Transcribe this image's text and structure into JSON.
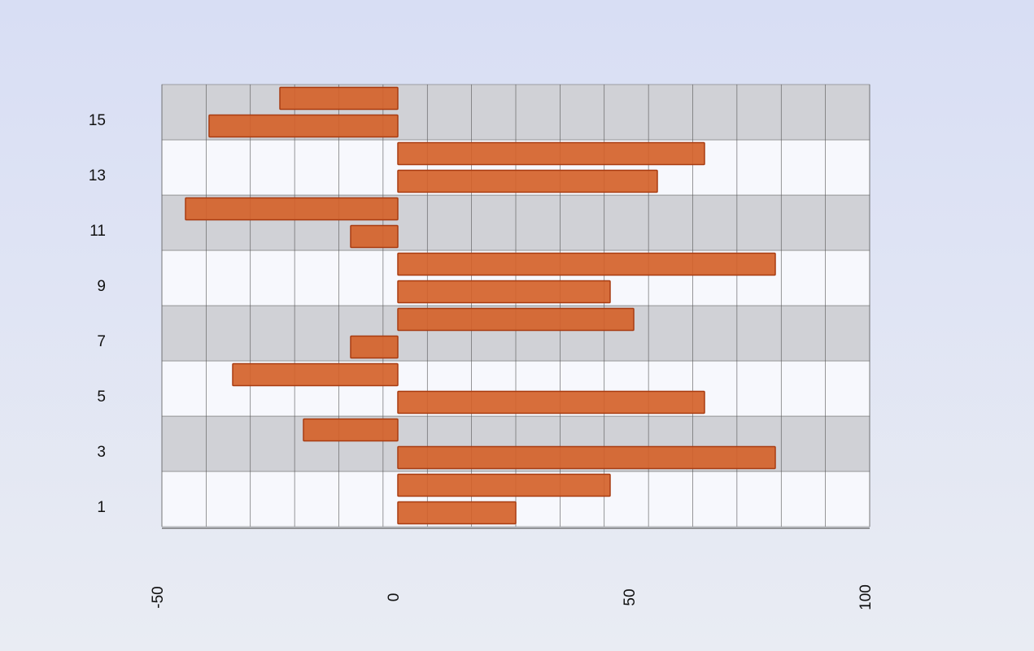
{
  "chart_data": {
    "type": "bar",
    "orientation": "horizontal",
    "categories": [
      "1",
      null,
      "3",
      null,
      "5",
      null,
      "7",
      null,
      "9",
      null,
      "11",
      null,
      "13",
      null,
      "15",
      null
    ],
    "values": [
      25,
      45,
      80,
      -20,
      65,
      -35,
      -10,
      50,
      45,
      80,
      -10,
      -45,
      55,
      65,
      -40,
      -25
    ],
    "color": "#d4622a",
    "xlim": [
      -50,
      100
    ],
    "xticks": [
      -50,
      0,
      50,
      100
    ]
  }
}
